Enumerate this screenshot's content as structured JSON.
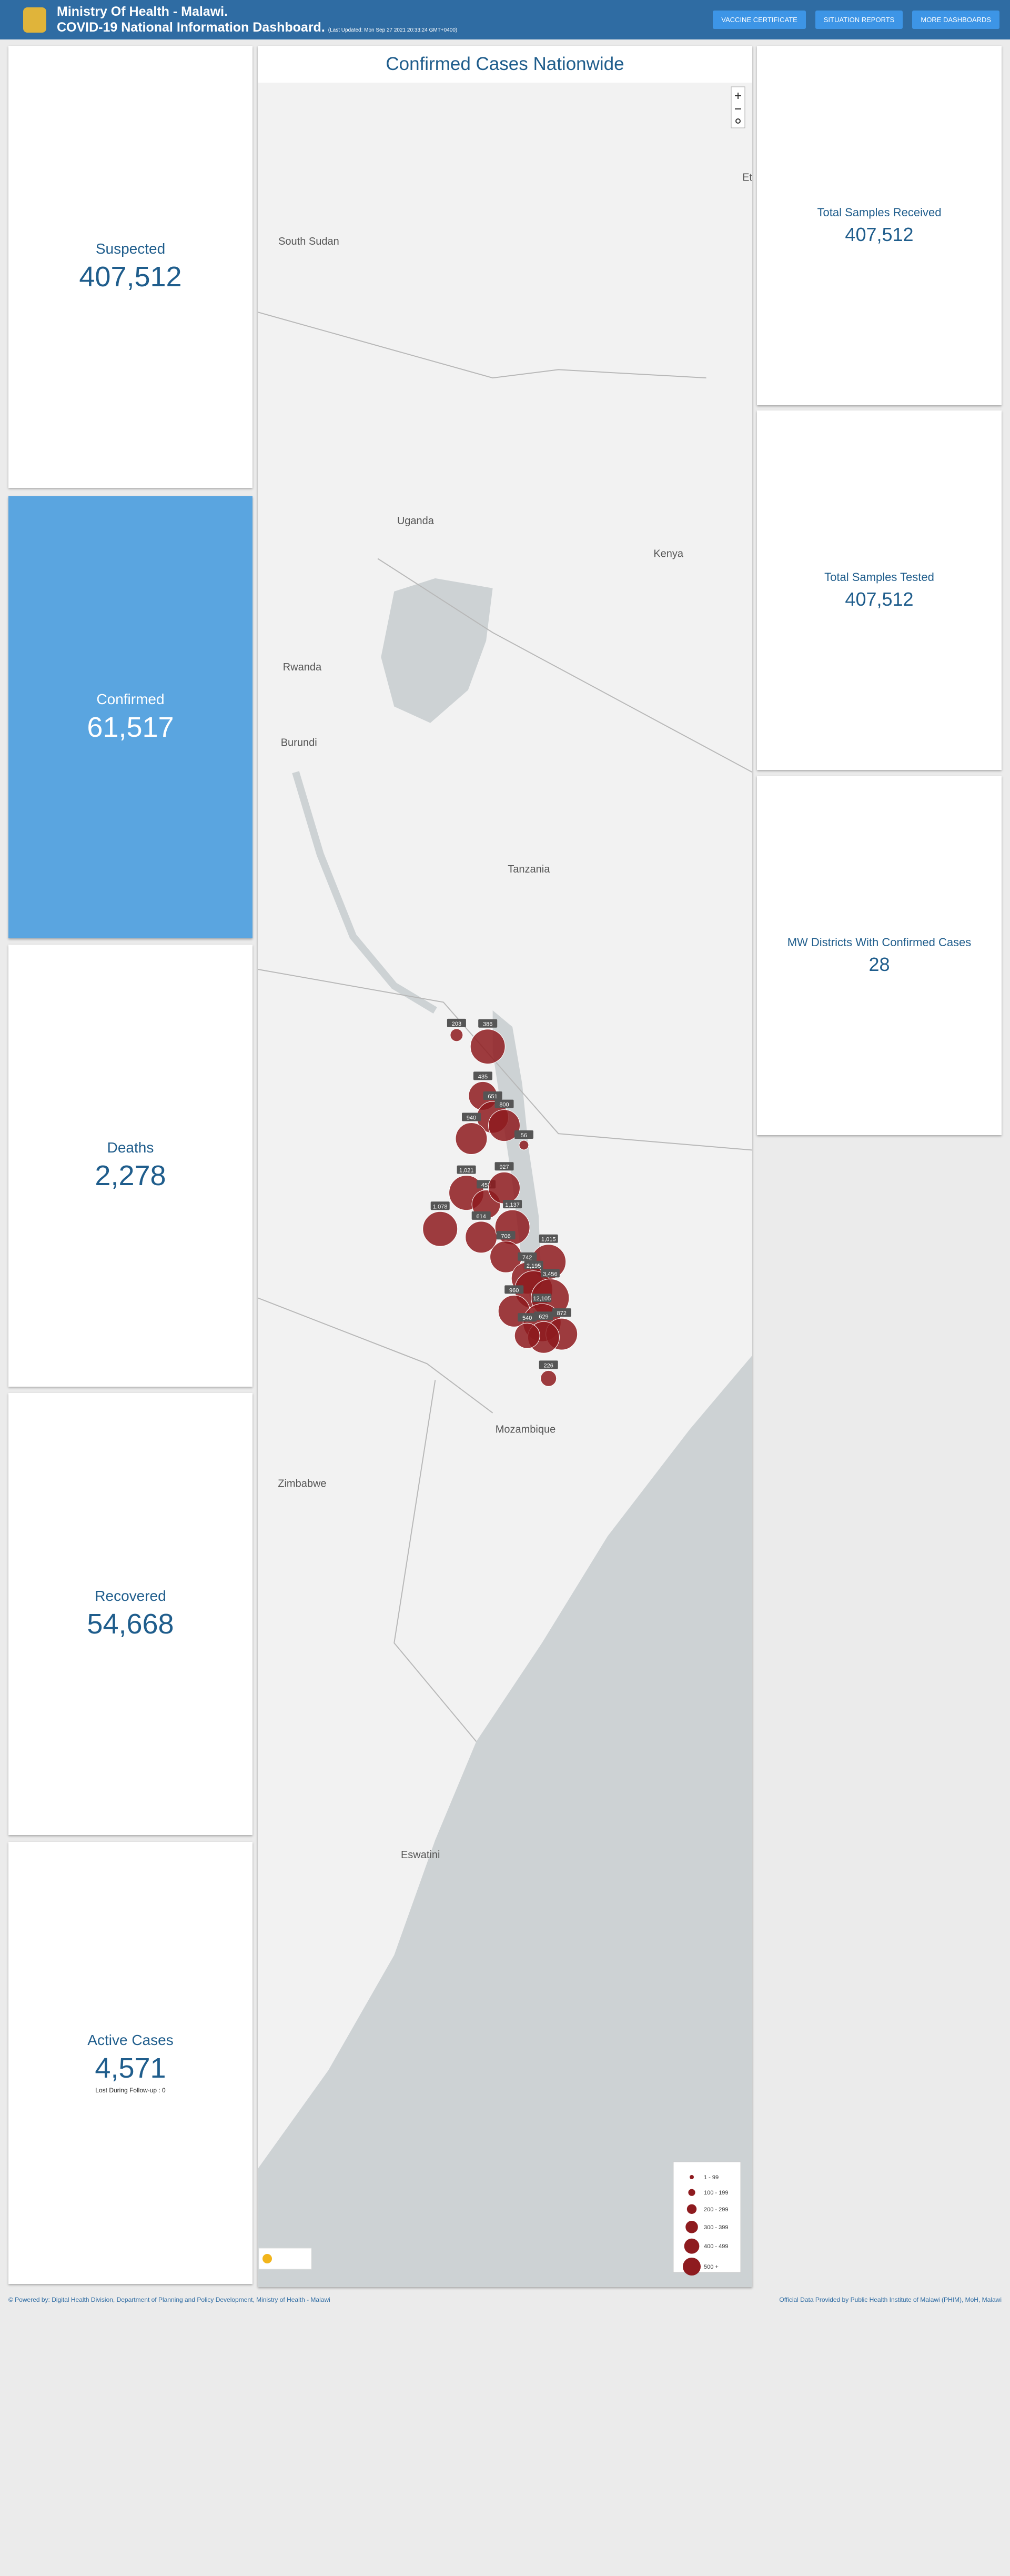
{
  "header": {
    "title": "Ministry Of Health - Malawi.",
    "subtitle": "COVID-19 National Information Dashboard.",
    "updated": "(Last Updated: Mon Sep 27 2021 20:33:24 GMT+0400)"
  },
  "nav": [
    "VACCINE CERTIFICATE",
    "SITUATION REPORTS",
    "MORE DASHBOARDS"
  ],
  "stats": [
    {
      "label": "Suspected",
      "value": "407,512"
    },
    {
      "label": "Confirmed",
      "value": "61,517"
    },
    {
      "label": "Deaths",
      "value": "2,278"
    },
    {
      "label": "Recovered",
      "value": "54,668"
    },
    {
      "label": "Active Cases",
      "value": "4,571",
      "note": "Lost During Follow-up : 0"
    }
  ],
  "samples": [
    {
      "label": "Total Samples Received",
      "value": "407,512"
    },
    {
      "label": "Total Samples Tested",
      "value": "407,512"
    },
    {
      "label": "MW Districts With Confirmed Cases",
      "value": "28"
    }
  ],
  "map": {
    "title": "Confirmed Cases Nationwide",
    "countries": [
      "South Sudan",
      "Ethi",
      "Kenya",
      "Uganda",
      "Rwanda",
      "Burundi",
      "Tanzania",
      "Mozambique",
      "Zimbabwe",
      "Eswatini"
    ],
    "bubbles": [
      "203",
      "386",
      "435",
      "651",
      "800",
      "940",
      "56",
      "1,021",
      "453",
      "927",
      "1,078",
      "614",
      "1,137",
      "706",
      "1,015",
      "742",
      "2,195",
      "3,456",
      "960",
      "12,105",
      "872",
      "629",
      "540",
      "226"
    ],
    "legend": [
      "1 - 99",
      "100 - 199",
      "200 - 299",
      "300 - 399",
      "400 - 499",
      "500 +"
    ]
  },
  "footer": {
    "left": "© Powered by: Digital Health Division, Department of Planning and Policy Development, Ministry of Health - Malawi",
    "right": "Official Data Provided by Public Health Institute of Malawi (PHIM), MoH, Malawi"
  }
}
